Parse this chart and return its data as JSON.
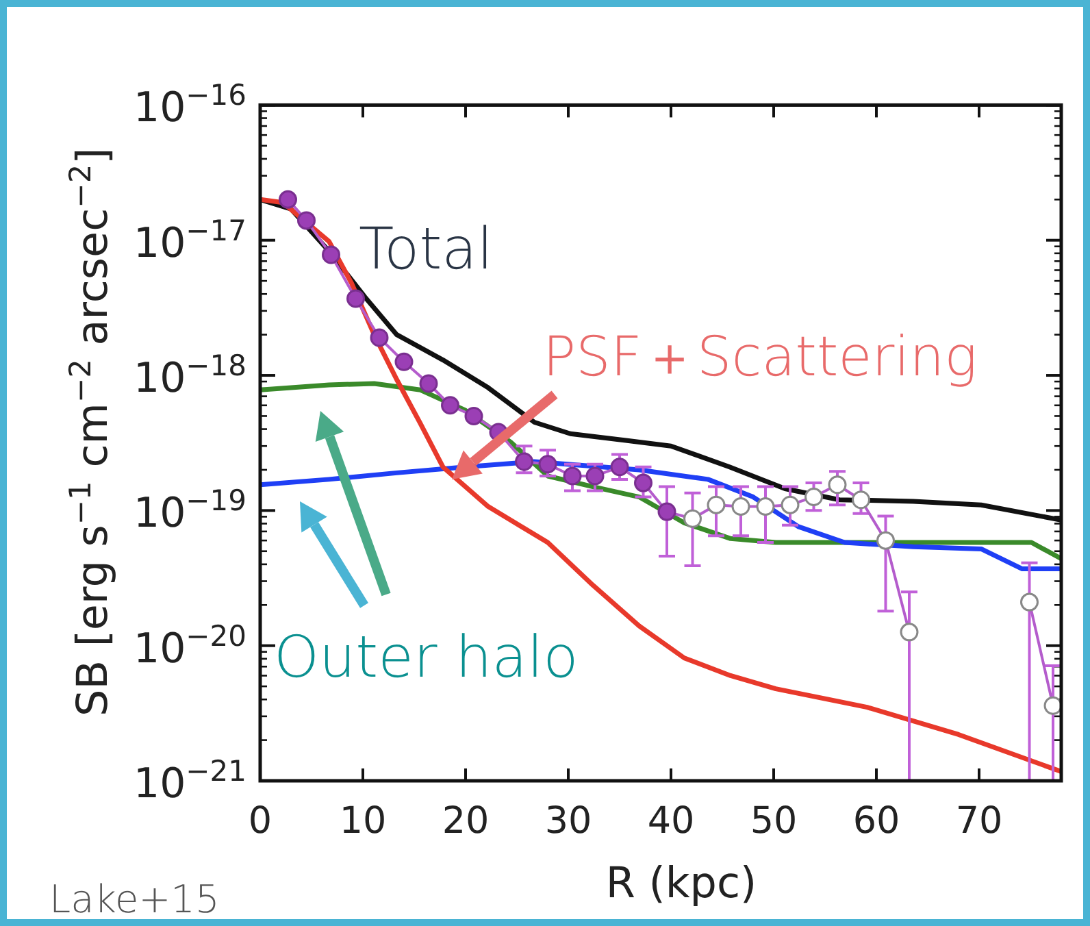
{
  "chart_data": {
    "type": "line",
    "xlabel": "R (kpc)",
    "ylabel": "SB [erg s$^{−1}$ cm$^{−2}$ arcsec$^{−2}$]",
    "xlim": [
      0,
      78
    ],
    "xticks": [
      0,
      10,
      20,
      30,
      40,
      50,
      60,
      70
    ],
    "ylim": [
      1e-21,
      1e-16
    ],
    "log": true,
    "yticks": [
      {
        "value": 1e-21,
        "label": "10$^{−21}$"
      },
      {
        "value": 1e-20,
        "label": "10$^{−20}$"
      },
      {
        "value": 1e-19,
        "label": "10$^{−19}$"
      },
      {
        "value": 1e-18,
        "label": "10$^{−18}$"
      },
      {
        "value": 1e-17,
        "label": "10$^{−17}$"
      },
      {
        "value": 1e-16,
        "label": "10$^{−16}$"
      }
    ],
    "annotations": [
      "Total",
      "PSF＋Scattering",
      "Outer halo",
      "Lake+15"
    ],
    "series": [
      {
        "color": "#111111",
        "x": [
          0,
          3,
          6.7,
          10.2,
          13.3,
          17.8,
          22.2,
          26.7,
          30.2,
          35.6,
          40,
          45.7,
          51.1,
          56.4,
          63.6,
          70.2,
          78
        ],
        "values": [
          2e-17,
          1.7e-17,
          8.3e-18,
          3.8e-18,
          2e-18,
          1.3e-18,
          8.1e-19,
          4.5e-19,
          3.7e-19,
          3.3e-19,
          3e-19,
          2.1e-19,
          1.45e-19,
          1.2e-19,
          1.17e-19,
          1.1e-19,
          8.5e-20
        ]
      },
      {
        "color": "#3a8a2a",
        "x": [
          0,
          6.7,
          11.1,
          15.6,
          20,
          24.4,
          28,
          32.4,
          36.9,
          41.3,
          45.8,
          50.2,
          59.1,
          70.2,
          75.1,
          78
        ],
        "values": [
          7.8e-19,
          8.5e-19,
          8.7e-19,
          7.8e-19,
          5.5e-19,
          3.2e-19,
          1.8e-19,
          1.5e-19,
          1.26e-19,
          8.1e-20,
          6.2e-20,
          5.8e-20,
          5.8e-20,
          5.8e-20,
          5.8e-20,
          4.4e-20
        ]
      },
      {
        "color": "#1f3ff5",
        "x": [
          0,
          6.7,
          13.3,
          20,
          26.7,
          36.9,
          43.6,
          48,
          52.4,
          56.9,
          63.6,
          70.2,
          74.2,
          78
        ],
        "values": [
          1.55e-19,
          1.7e-19,
          1.9e-19,
          2.1e-19,
          2.3e-19,
          2e-19,
          1.7e-19,
          1.26e-19,
          7.6e-20,
          5.8e-20,
          5.4e-20,
          5.2e-20,
          3.7e-20,
          3.7e-20
        ]
      },
      {
        "color": "#e8392b",
        "x": [
          0,
          2.2,
          6.7,
          8.9,
          11.1,
          13.3,
          15.6,
          17.8,
          22.2,
          28,
          32.4,
          36.9,
          41.3,
          45.8,
          50.2,
          59.1,
          68,
          78
        ],
        "values": [
          2e-17,
          1.9e-17,
          9.8e-18,
          4.8e-18,
          2e-18,
          9.3e-19,
          4.4e-19,
          2.1e-19,
          1.07e-19,
          5.8e-20,
          2.8e-20,
          1.4e-20,
          8.1e-21,
          6e-21,
          4.8e-21,
          3.5e-21,
          2.2e-21,
          1.17e-21
        ]
      },
      {
        "marker": "circle",
        "color": "#b45ccc",
        "x": [
          2.7,
          4.5,
          6.9,
          9.3,
          11.6,
          14.0,
          16.4,
          18.5,
          20.8,
          23.2,
          25.7,
          28.0,
          30.4,
          32.6,
          35.0,
          37.3,
          39.6,
          42.1,
          44.4,
          46.8,
          49.2,
          51.6,
          53.9,
          56.2,
          58.5,
          60.9,
          63.2
        ],
        "values": [
          2e-17,
          1.4e-17,
          7.8e-18,
          3.7e-18,
          1.9e-18,
          1.26e-18,
          8.7e-19,
          6e-19,
          5e-19,
          3.8e-19,
          2.3e-19,
          2.2e-19,
          1.8e-19,
          1.8e-19,
          2.1e-19,
          1.6e-19,
          9.8e-20,
          8.7e-20,
          1.1e-19,
          1.07e-19,
          1.07e-19,
          1.1e-19,
          1.26e-19,
          1.55e-19,
          1.2e-19,
          6e-20,
          1.26e-20
        ],
        "colors": [
          "#9b3fb5",
          "#9b3fb5",
          "#9b3fb5",
          "#9b3fb5",
          "#9b3fb5",
          "#9b3fb5",
          "#9b3fb5",
          "#9b3fb5",
          "#9b3fb5",
          "#9b3fb5",
          "#9b3fb5",
          "#9b3fb5",
          "#9b3fb5",
          "#9b3fb5",
          "#9b3fb5",
          "#9b3fb5",
          "#9b3fb5",
          "#ffffff",
          "#ffffff",
          "#ffffff",
          "#ffffff",
          "#ffffff",
          "#ffffff",
          "#ffffff",
          "#ffffff",
          "#ffffff",
          "#ffffff"
        ],
        "errors": [
          null,
          null,
          null,
          null,
          null,
          null,
          null,
          null,
          null,
          null,
          [
            1.9e-19,
            3e-19
          ],
          [
            1.8e-19,
            2.8e-19
          ],
          [
            1.4e-19,
            2.2e-19
          ],
          [
            1.4e-19,
            2.2e-19
          ],
          [
            1.7e-19,
            2.6e-19
          ],
          [
            1.26e-19,
            2.1e-19
          ],
          [
            4.6e-20,
            1.5e-19
          ],
          [
            3.9e-20,
            1.35e-19
          ],
          [
            6.5e-20,
            1.5e-19
          ],
          [
            6.5e-20,
            1.5e-19
          ],
          [
            5.8e-20,
            1.5e-19
          ],
          [
            7.8e-20,
            1.5e-19
          ],
          [
            1e-19,
            1.6e-19
          ],
          [
            1.1e-19,
            1.95e-19
          ],
          [
            9.5e-20,
            1.6e-19
          ],
          [
            1.8e-20,
            9.1e-20
          ],
          [
            1e-21,
            2.5e-20
          ]
        ]
      },
      {
        "marker": "circle",
        "color": "#b45ccc",
        "x": [
          74.9,
          77.2
        ],
        "values": [
          2.1e-20,
          3.6e-21
        ],
        "colors": [
          "#ffffff",
          "#ffffff"
        ],
        "errors": [
          [
            1e-21,
            4.1e-20
          ],
          [
            1e-21,
            7.1e-21
          ]
        ]
      }
    ]
  }
}
